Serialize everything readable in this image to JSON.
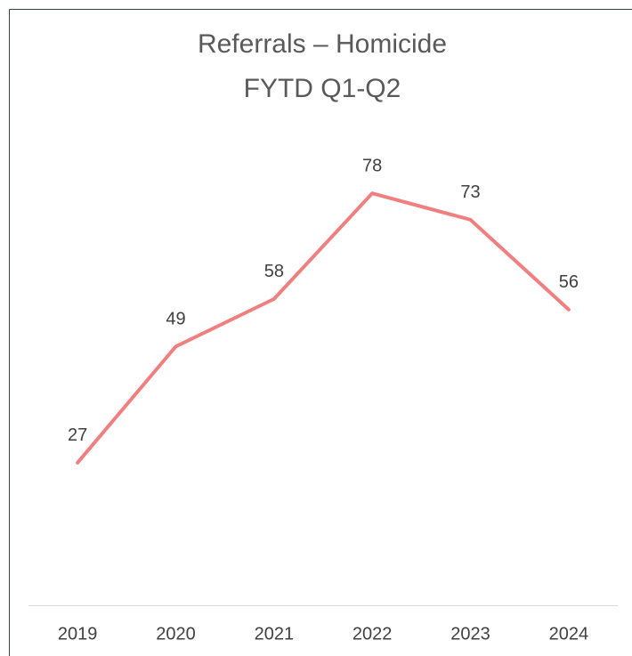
{
  "chart_data": {
    "type": "line",
    "title": "Referrals – Homicide",
    "subtitle": "FYTD Q1-Q2",
    "categories": [
      "2019",
      "2020",
      "2021",
      "2022",
      "2023",
      "2024"
    ],
    "series": [
      {
        "name": "Referrals",
        "color": "#f08080",
        "values": [
          27,
          49,
          58,
          78,
          73,
          56
        ]
      }
    ],
    "ylim": [
      0,
      90
    ]
  }
}
